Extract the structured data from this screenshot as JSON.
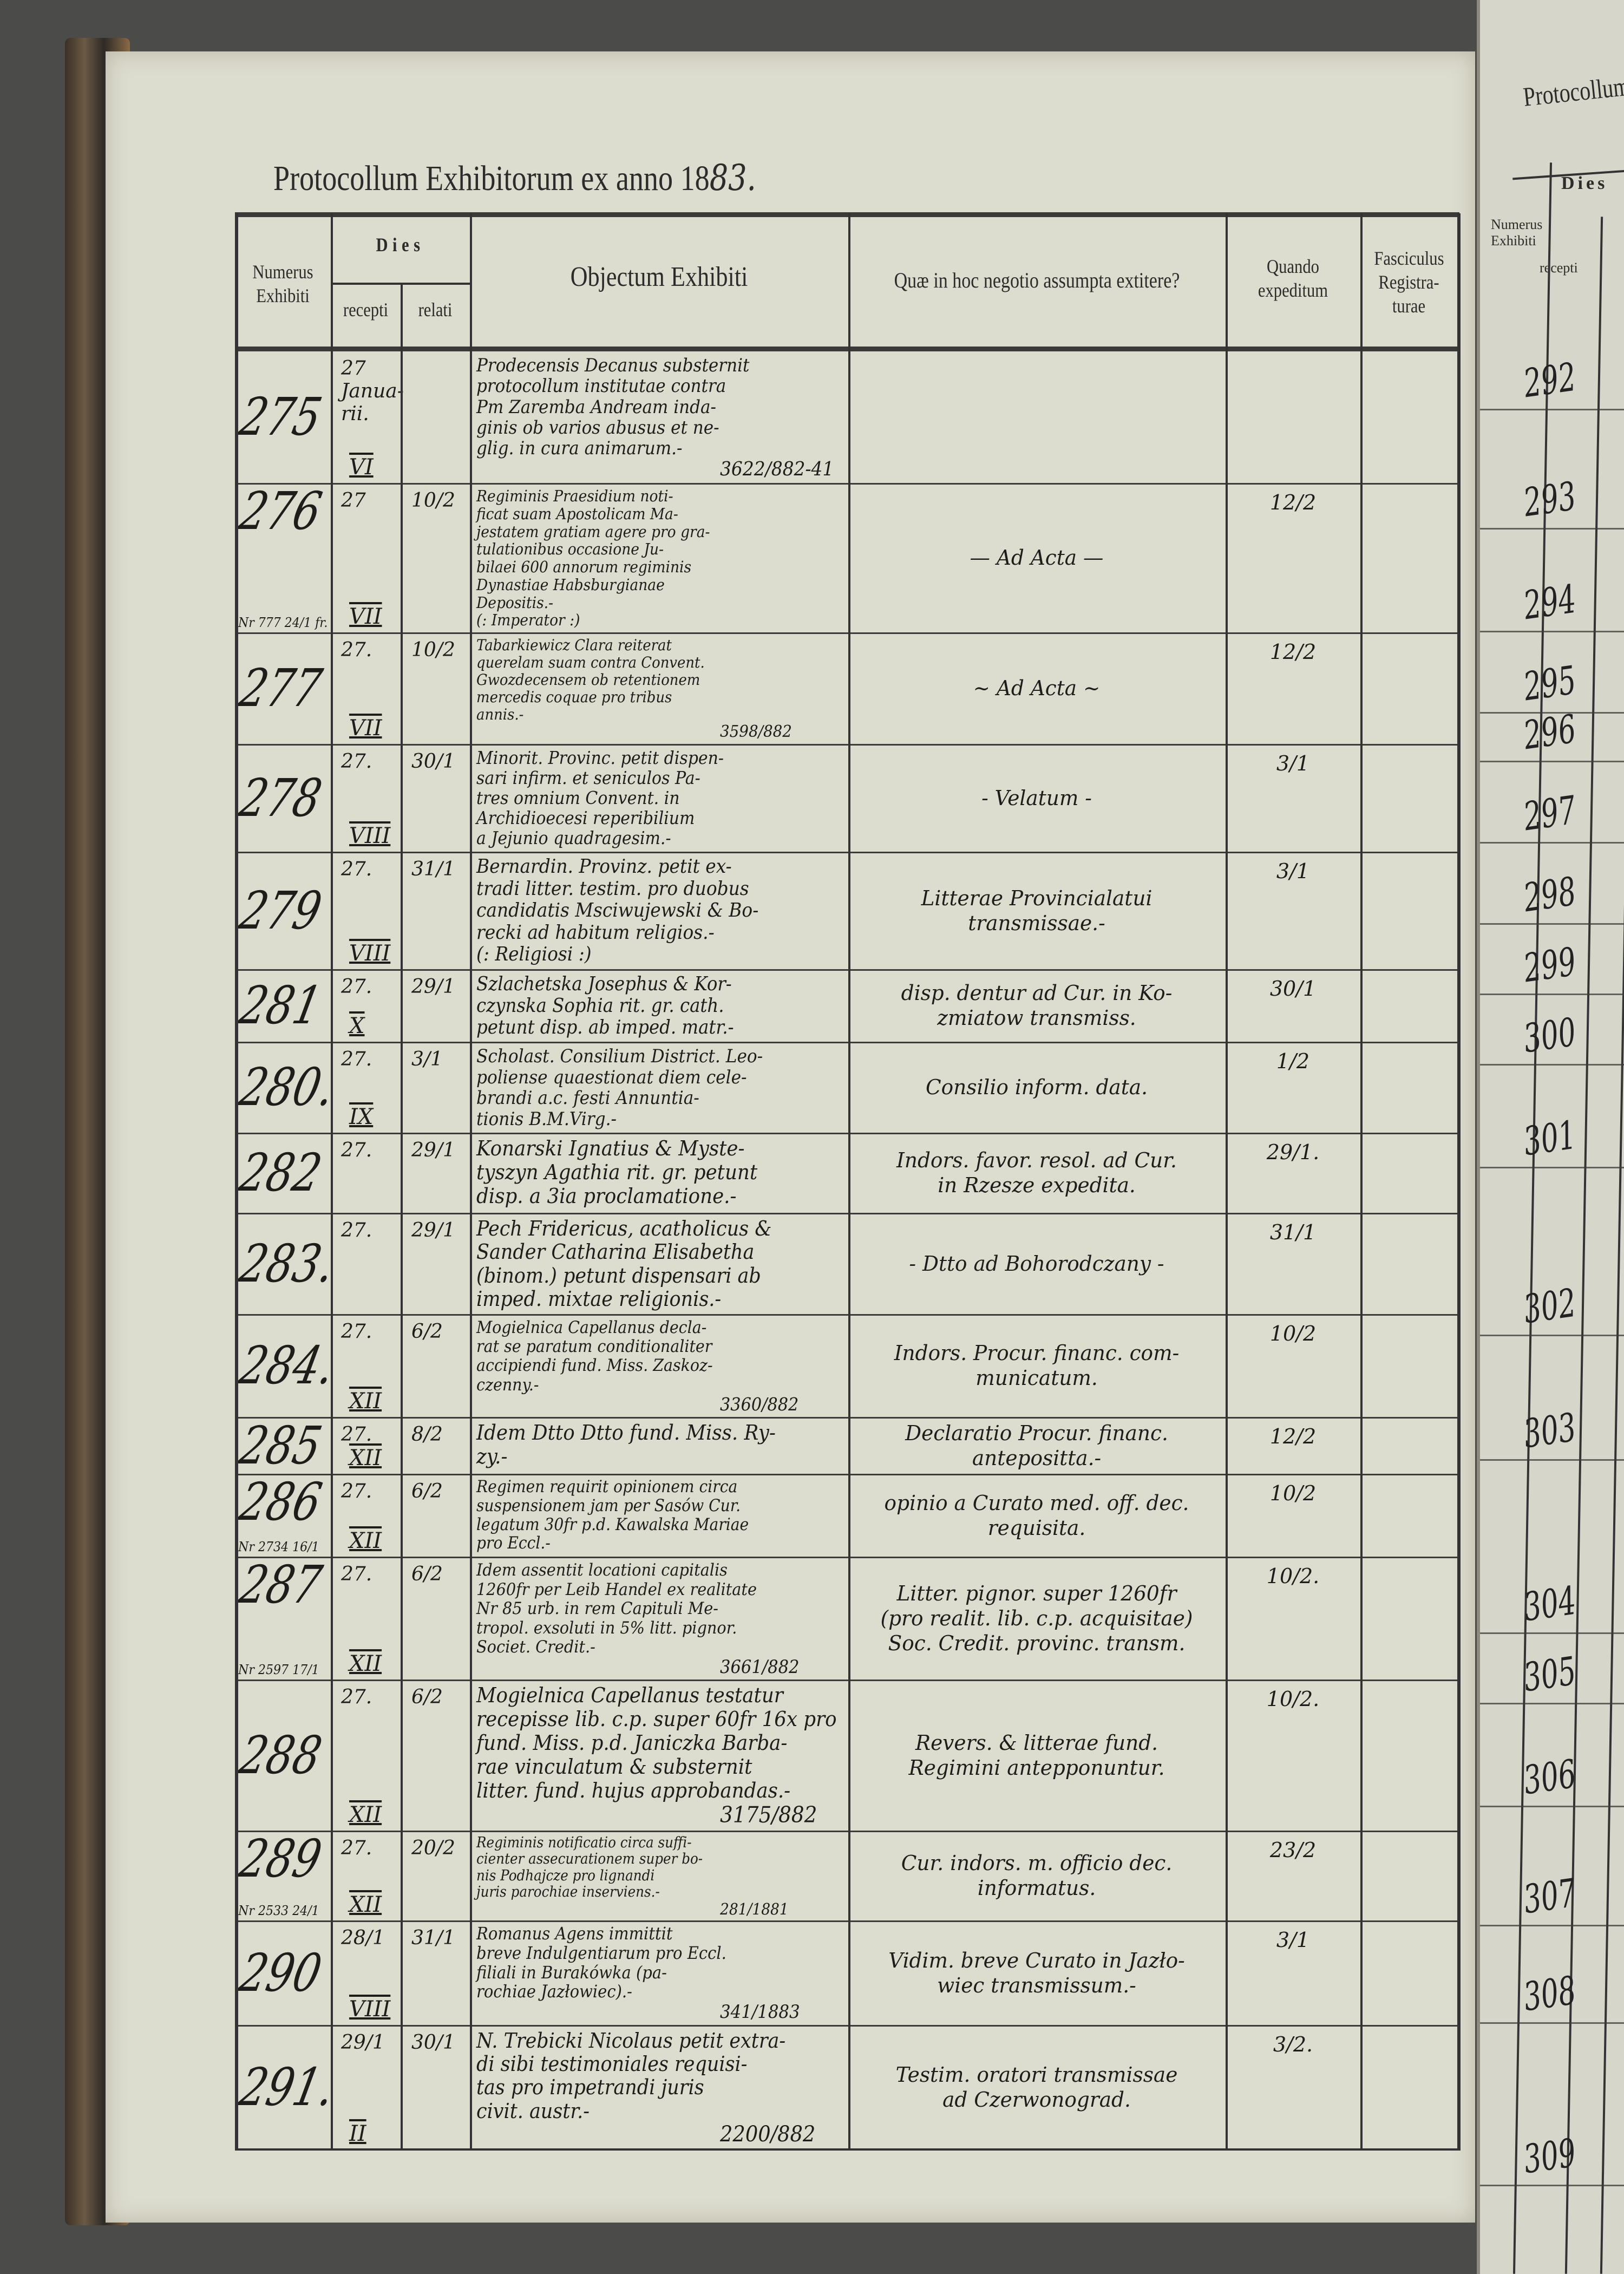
{
  "title": {
    "text": "Protocollum Exhibitorum ex anno 18",
    "year_handwritten": "83."
  },
  "header": {
    "numerus": "Numerus Exhibiti",
    "dies": "Dies",
    "recepti": "recepti",
    "relati": "relati",
    "objectum": "Objectum Exhibiti",
    "quae": "Quæ in hoc negotio assumpta extitere?",
    "quando": "Quando expeditum",
    "fasciculus": "Fasciculus Registra- turae"
  },
  "rows": [
    {
      "numerus": "275",
      "recepti": "27 Janua- rii.",
      "mensis": "VI",
      "relati": "",
      "note": "",
      "objectum": [
        "Prodecensis Decanus substernit",
        "protocollum institutae contra",
        "Pm Zaremba Andream inda-",
        "ginis ob varios abusus et ne-",
        "glig. in cura animarum.-"
      ],
      "ref": "3622/882-41",
      "quae": [],
      "quando": ""
    },
    {
      "numerus": "276",
      "recepti": "27",
      "mensis": "VII",
      "relati": "10/2",
      "note": "Nr 777 24/1 fr.",
      "objectum": [
        "Regiminis Praesidium noti-",
        "ficat suam Apostolicam Ma-",
        "jestatem gratiam agere pro gra-",
        "tulationibus occasione Ju-",
        "bilaei 600 annorum regiminis",
        "Dynastiae Habsburgianae",
        "Depositis.-",
        "(: Imperator :)"
      ],
      "ref": "",
      "quae": [
        "— Ad Acta —"
      ],
      "quando": "12/2"
    },
    {
      "numerus": "277",
      "recepti": "27.",
      "mensis": "VII",
      "relati": "10/2",
      "note": "",
      "objectum": [
        "Tabarkiewicz Clara reiterat",
        "querelam suam contra Convent.",
        "Gwozdecensem ob retentionem",
        "mercedis coquae pro tribus",
        "annis.-"
      ],
      "ref": "3598/882",
      "quae": [
        "~ Ad Acta ~"
      ],
      "quando": "12/2"
    },
    {
      "numerus": "278",
      "recepti": "27.",
      "mensis": "VIII",
      "relati": "30/1",
      "note": "",
      "objectum": [
        "Minorit. Provinc. petit dispen-",
        "sari infirm. et seniculos Pa-",
        "tres omnium Convent. in",
        "Archidioecesi reperibilium",
        "a Jejunio quadragesim.-"
      ],
      "ref": "",
      "quae": [
        "- Velatum -"
      ],
      "quando": "3/1"
    },
    {
      "numerus": "279",
      "recepti": "27.",
      "mensis": "VIII",
      "relati": "31/1",
      "note": "",
      "objectum": [
        "Bernardin. Provinz. petit ex-",
        "tradi litter. testim. pro duobus",
        "candidatis Msciwujewski & Bo-",
        "recki ad habitum religios.-",
        "(: Religiosi :)"
      ],
      "ref": "",
      "quae": [
        "Litterae Provincialatui",
        "transmissae.-"
      ],
      "quando": "3/1"
    },
    {
      "numerus": "281",
      "recepti": "27.",
      "mensis": "X",
      "relati": "29/1",
      "note": "",
      "objectum": [
        "Szlachetska Josephus & Kor-",
        "czynska Sophia rit. gr. cath.",
        "petunt disp. ab imped. matr.-"
      ],
      "ref": "",
      "quae": [
        "disp. dentur ad Cur. in Ko-",
        "zmiatow transmiss."
      ],
      "quando": "30/1"
    },
    {
      "numerus": "280.",
      "recepti": "27.",
      "mensis": "IX",
      "relati": "3/1",
      "note": "",
      "objectum": [
        "Scholast. Consilium District. Leo-",
        "poliense quaestionat diem cele-",
        "brandi a.c. festi Annuntia-",
        "tionis B.M.Virg.-"
      ],
      "ref": "",
      "quae": [
        "Consilio inform. data."
      ],
      "quando": "1/2"
    },
    {
      "numerus": "282",
      "recepti": "27.",
      "mensis": "",
      "relati": "29/1",
      "note": "",
      "objectum": [
        "Konarski Ignatius & Myste-",
        "tyszyn Agathia rit. gr. petunt",
        "disp. a 3ia proclamatione.-"
      ],
      "ref": "",
      "quae": [
        "Indors. favor. resol. ad Cur.",
        "in Rzesze expedita."
      ],
      "quando": "29/1."
    },
    {
      "numerus": "283.",
      "recepti": "27.",
      "mensis": "",
      "relati": "29/1",
      "note": "",
      "objectum": [
        "Pech Fridericus, acatholicus &",
        "Sander Catharina Elisabetha",
        "(binom.) petunt dispensari ab",
        "imped. mixtae religionis.-"
      ],
      "ref": "",
      "quae": [
        "- Dtto ad Bohorodczany -"
      ],
      "quando": "31/1"
    },
    {
      "numerus": "284.",
      "recepti": "27.",
      "mensis": "XII",
      "relati": "6/2",
      "note": "",
      "objectum": [
        "Mogielnica Capellanus decla-",
        "rat se paratum conditionaliter",
        "accipiendi fund. Miss. Zaskoz-",
        "czenny.-"
      ],
      "ref": "3360/882",
      "quae": [
        "Indors. Procur. financ. com-",
        "municatum."
      ],
      "quando": "10/2"
    },
    {
      "numerus": "285",
      "recepti": "27.",
      "mensis": "XII",
      "relati": "8/2",
      "note": "",
      "objectum": [
        "Idem Dtto Dtto fund. Miss. Ry-",
        "zy.-"
      ],
      "ref": "",
      "quae": [
        "Declaratio Procur. financ.",
        "antepositta.-"
      ],
      "quando": "12/2"
    },
    {
      "numerus": "286",
      "recepti": "27.",
      "mensis": "XII",
      "relati": "6/2",
      "note": "Nr 2734 16/1",
      "objectum": [
        "Regimen requirit opinionem circa",
        "suspensionem jam per Sasów Cur.",
        "legatum 30fr p.d. Kawalska Mariae",
        "pro Eccl.-"
      ],
      "ref": "",
      "quae": [
        "opinio a Curato med. off. dec.",
        "requisita."
      ],
      "quando": "10/2"
    },
    {
      "numerus": "287",
      "recepti": "27.",
      "mensis": "XII",
      "relati": "6/2",
      "note": "Nr 2597 17/1",
      "objectum": [
        "Idem assentit locationi capitalis",
        "1260fr per Leib Handel ex realitate",
        "Nr 85 urb. in rem Capituli Me-",
        "tropol. exsoluti in 5% litt. pignor.",
        "Societ. Credit.-"
      ],
      "ref": "3661/882",
      "quae": [
        "Litter. pignor. super 1260fr",
        "(pro realit. lib. c.p. acquisitae)",
        "Soc. Credit. provinc. transm."
      ],
      "quando": "10/2."
    },
    {
      "numerus": "288",
      "recepti": "27.",
      "mensis": "XII",
      "relati": "6/2",
      "note": "",
      "objectum": [
        "Mogielnica Capellanus testatur",
        "recepisse lib. c.p. super 60fr 16x pro",
        "fund. Miss. p.d. Janiczka Barba-",
        "rae vinculatum & substernit",
        "litter. fund. hujus approbandas.-"
      ],
      "ref": "3175/882",
      "quae": [
        "Revers. & litterae fund.",
        "Regimini antepponuntur."
      ],
      "quando": "10/2."
    },
    {
      "numerus": "289",
      "recepti": "27.",
      "mensis": "XII",
      "relati": "20/2",
      "note": "Nr 2533 24/1",
      "objectum": [
        "Regiminis notificatio circa suffi-",
        "cienter assecurationem super bo-",
        "nis Podhajcze pro lignandi",
        "juris parochiae inserviens.-"
      ],
      "ref": "281/1881",
      "quae": [
        "Cur. indors. m. officio dec.",
        "informatus."
      ],
      "quando": "23/2"
    },
    {
      "numerus": "290",
      "recepti": "28/1",
      "mensis": "VIII",
      "relati": "31/1",
      "note": "",
      "objectum": [
        "Romanus Agens immittit",
        "breve Indulgentiarum pro Eccl.",
        "filiali in Burakówka (pa-",
        "rochiae Jazłowiec).-"
      ],
      "ref": "341/1883",
      "quae": [
        "Vidim. breve Curato in Jazło-",
        "wiec transmissum.-"
      ],
      "quando": "3/1"
    },
    {
      "numerus": "291.",
      "recepti": "29/1",
      "mensis": "II",
      "relati": "30/1",
      "note": "",
      "objectum": [
        "N. Trebicki Nicolaus petit extra-",
        "di sibi testimoniales requisi-",
        "tas pro impetrandi juris",
        "civit. austr.-"
      ],
      "ref": "2200/882",
      "quae": [
        "Testim. oratori transmissae",
        "ad Czerwonograd."
      ],
      "quando": "3/2."
    }
  ],
  "right_page": {
    "title": "Protocollum",
    "dies": "Dies",
    "numerus": "Numerus Exhibiti",
    "recepti": "recepti",
    "numbers": [
      "292",
      "293",
      "294",
      "295",
      "296",
      "297",
      "298",
      "299",
      "300",
      "301",
      "302",
      "303",
      "304",
      "305",
      "306",
      "307",
      "308",
      "309"
    ]
  }
}
